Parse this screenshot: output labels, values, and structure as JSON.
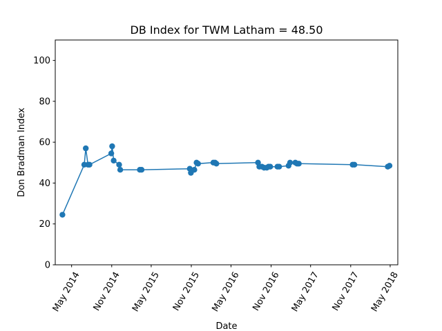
{
  "chart_data": {
    "type": "line",
    "title": "DB Index for TWM Latham = 48.50",
    "xlabel": "Date",
    "ylabel": "Don Bradman Index",
    "ylim": [
      0,
      110
    ],
    "xlim": [
      "2014-02-15",
      "2018-06-05"
    ],
    "yticks": [
      0,
      20,
      40,
      60,
      80,
      100
    ],
    "xticks": [
      {
        "date": "2014-05-01",
        "label": "May 2014"
      },
      {
        "date": "2014-11-01",
        "label": "Nov 2014"
      },
      {
        "date": "2015-05-01",
        "label": "May 2015"
      },
      {
        "date": "2015-11-01",
        "label": "Nov 2015"
      },
      {
        "date": "2016-05-01",
        "label": "May 2016"
      },
      {
        "date": "2016-11-01",
        "label": "Nov 2016"
      },
      {
        "date": "2017-05-01",
        "label": "May 2017"
      },
      {
        "date": "2017-11-01",
        "label": "Nov 2017"
      },
      {
        "date": "2018-05-01",
        "label": "May 2018"
      }
    ],
    "grid": false,
    "color": "#1f77b4",
    "series": [
      {
        "x": [
          "2014-03-20",
          "2014-06-28",
          "2014-07-05",
          "2014-07-15",
          "2014-07-22",
          "2014-10-30",
          "2014-11-03",
          "2014-11-10",
          "2014-12-05",
          "2014-12-10",
          "2015-03-10",
          "2015-03-18",
          "2015-10-25",
          "2015-10-30",
          "2015-11-15",
          "2015-11-25",
          "2015-12-02",
          "2016-02-10",
          "2016-02-18",
          "2016-02-24",
          "2016-09-02",
          "2016-09-08",
          "2016-09-20",
          "2016-09-30",
          "2016-10-12",
          "2016-10-20",
          "2016-10-28",
          "2016-11-30",
          "2016-12-08",
          "2017-01-20",
          "2017-01-27",
          "2017-02-20",
          "2017-02-28",
          "2017-03-08",
          "2017-11-10",
          "2017-11-18",
          "2018-04-20",
          "2018-04-28"
        ],
        "y": [
          24.5,
          49.0,
          57.0,
          49.0,
          49.0,
          54.5,
          58.0,
          51.0,
          49.0,
          46.5,
          46.5,
          46.5,
          47.0,
          45.0,
          46.5,
          50.0,
          49.5,
          50.0,
          50.0,
          49.5,
          50.0,
          48.0,
          48.0,
          47.5,
          47.5,
          48.0,
          48.0,
          48.0,
          48.0,
          48.5,
          50.0,
          50.0,
          49.5,
          49.5,
          49.0,
          49.0,
          48.0,
          48.5
        ]
      }
    ]
  }
}
